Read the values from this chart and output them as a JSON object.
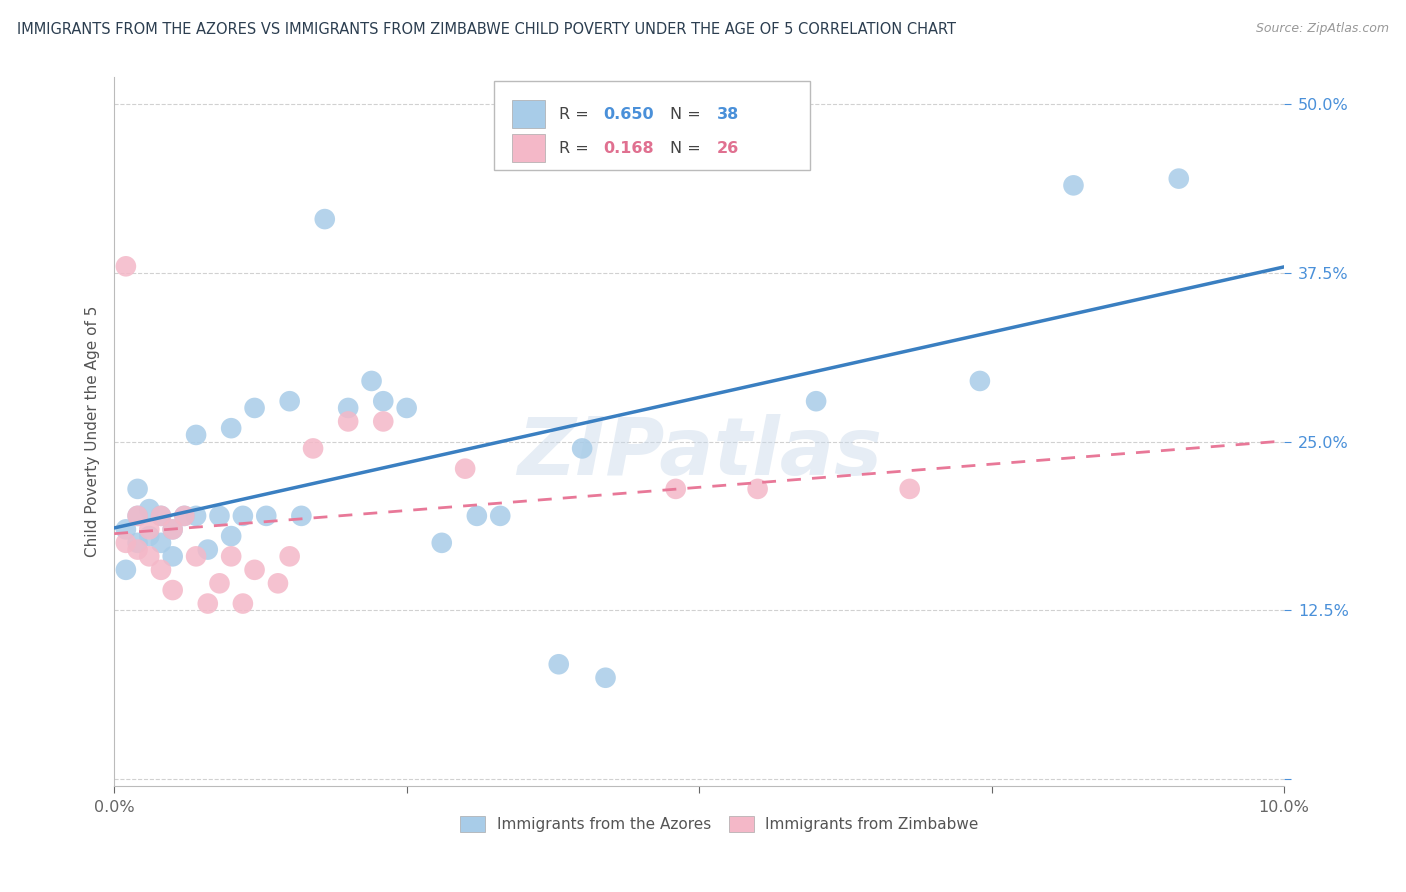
{
  "title": "IMMIGRANTS FROM THE AZORES VS IMMIGRANTS FROM ZIMBABWE CHILD POVERTY UNDER THE AGE OF 5 CORRELATION CHART",
  "source": "Source: ZipAtlas.com",
  "ylabel": "Child Poverty Under the Age of 5",
  "legend_azores": "Immigrants from the Azores",
  "legend_zimbabwe": "Immigrants from Zimbabwe",
  "R_azores": 0.65,
  "N_azores": 38,
  "R_zimbabwe": 0.168,
  "N_zimbabwe": 26,
  "color_azores": "#a8cce8",
  "color_zimbabwe": "#f4b8c8",
  "line_color_azores": "#3a7fc1",
  "line_color_zimbabwe": "#e87898",
  "watermark": "ZIPatlas",
  "azores_x": [
    0.001,
    0.001,
    0.002,
    0.002,
    0.002,
    0.003,
    0.003,
    0.004,
    0.004,
    0.005,
    0.005,
    0.006,
    0.007,
    0.007,
    0.008,
    0.009,
    0.01,
    0.01,
    0.011,
    0.012,
    0.013,
    0.015,
    0.016,
    0.018,
    0.02,
    0.022,
    0.023,
    0.025,
    0.028,
    0.031,
    0.033,
    0.038,
    0.04,
    0.042,
    0.06,
    0.074,
    0.082,
    0.091
  ],
  "azores_y": [
    0.155,
    0.185,
    0.175,
    0.195,
    0.215,
    0.18,
    0.2,
    0.175,
    0.195,
    0.165,
    0.185,
    0.195,
    0.255,
    0.195,
    0.17,
    0.195,
    0.18,
    0.26,
    0.195,
    0.275,
    0.195,
    0.28,
    0.195,
    0.415,
    0.275,
    0.295,
    0.28,
    0.275,
    0.175,
    0.195,
    0.195,
    0.085,
    0.245,
    0.075,
    0.28,
    0.295,
    0.44,
    0.445
  ],
  "zimbabwe_x": [
    0.001,
    0.001,
    0.002,
    0.002,
    0.003,
    0.003,
    0.004,
    0.004,
    0.005,
    0.005,
    0.006,
    0.007,
    0.008,
    0.009,
    0.01,
    0.011,
    0.012,
    0.014,
    0.015,
    0.017,
    0.02,
    0.023,
    0.03,
    0.048,
    0.055,
    0.068
  ],
  "zimbabwe_y": [
    0.38,
    0.175,
    0.195,
    0.17,
    0.185,
    0.165,
    0.195,
    0.155,
    0.185,
    0.14,
    0.195,
    0.165,
    0.13,
    0.145,
    0.165,
    0.13,
    0.155,
    0.145,
    0.165,
    0.245,
    0.265,
    0.265,
    0.23,
    0.215,
    0.215,
    0.215
  ],
  "xlim": [
    0.0,
    0.1
  ],
  "ylim": [
    -0.005,
    0.52
  ],
  "y_tick_positions": [
    0.0,
    0.125,
    0.25,
    0.375,
    0.5
  ],
  "x_tick_positions": [
    0.0,
    0.025,
    0.05,
    0.075,
    0.1
  ]
}
